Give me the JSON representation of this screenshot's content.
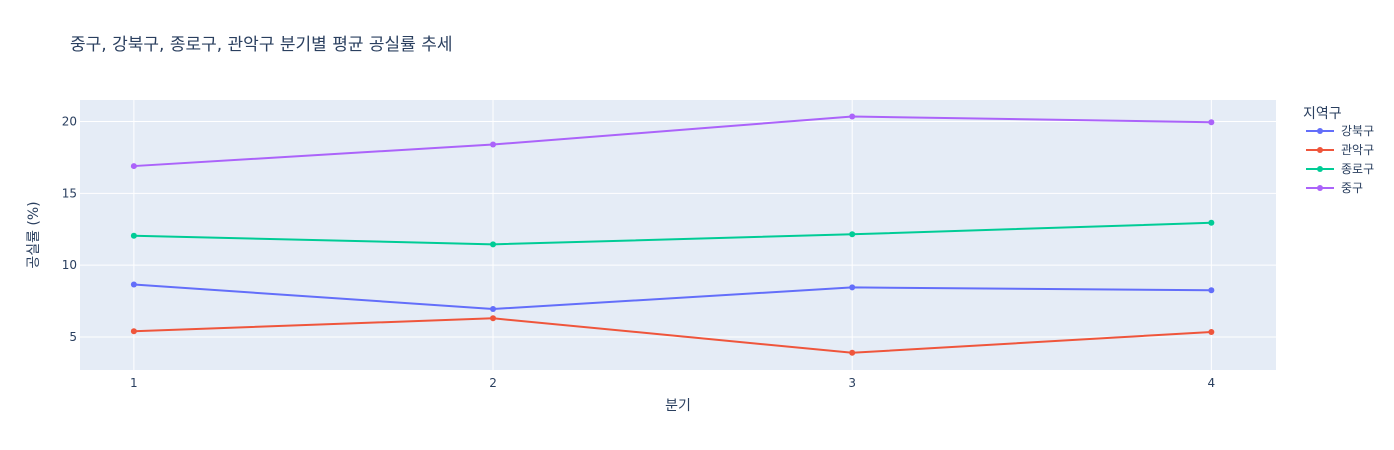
{
  "chart_data": {
    "type": "line",
    "title": "중구, 강북구, 종로구, 관악구 분기별 평균 공실률 추세",
    "xlabel": "분기",
    "ylabel": "공실률 (%)",
    "x": [
      1,
      2,
      3,
      4
    ],
    "x_tick_labels": [
      "1",
      "2",
      "3",
      "4"
    ],
    "y_ticks": [
      5,
      10,
      15,
      20
    ],
    "y_tick_labels": [
      "5",
      "10",
      "15",
      "20"
    ],
    "xlim": [
      0.85,
      4.18
    ],
    "ylim": [
      2.7,
      21.5
    ],
    "grid": true,
    "legend": {
      "title": "지역구",
      "placement": "top-right, outside plot"
    },
    "series": [
      {
        "name": "강북구",
        "color": "#636efa",
        "values": [
          8.65,
          6.95,
          8.45,
          8.25
        ]
      },
      {
        "name": "관악구",
        "color": "#ef553b",
        "values": [
          5.4,
          6.3,
          3.9,
          5.35
        ]
      },
      {
        "name": "종로구",
        "color": "#00cc96",
        "values": [
          12.05,
          11.45,
          12.15,
          12.95
        ]
      },
      {
        "name": "중구",
        "color": "#ab63fa",
        "values": [
          16.9,
          18.4,
          20.35,
          19.95
        ]
      }
    ],
    "plot_background": "#e5ecf6",
    "grid_color": "#ffffff"
  }
}
